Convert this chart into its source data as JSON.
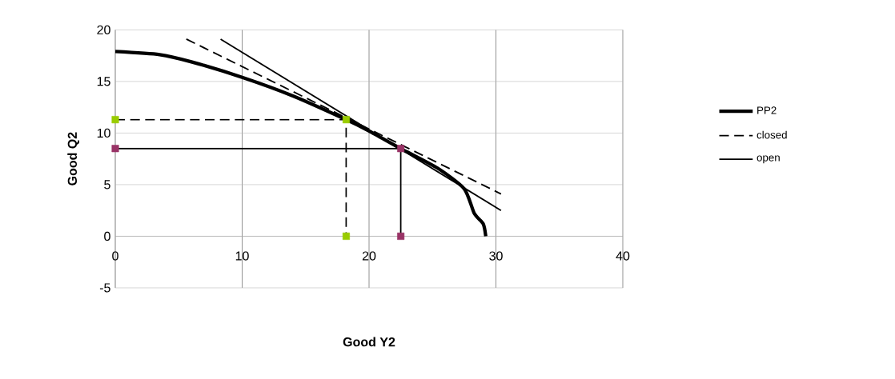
{
  "chart_data": {
    "type": "line",
    "xlabel": "Good Y2",
    "ylabel": "Good Q2",
    "xlim": [
      0,
      40
    ],
    "ylim": [
      -5,
      20
    ],
    "xticks": [
      0,
      10,
      20,
      30,
      40
    ],
    "yticks": [
      -5,
      0,
      5,
      10,
      15,
      20
    ],
    "grid": true,
    "legend": "right",
    "marker": "none",
    "series": [
      {
        "name": "PP2",
        "color": "#000000",
        "x": [
          0,
          3.5,
          6,
          10,
          14,
          18.2,
          20,
          22.5,
          25.4,
          27.5,
          28.3,
          29.0,
          29.2
        ],
        "values": [
          17.9,
          17.6,
          16.9,
          15.4,
          13.6,
          11.3,
          10.2,
          8.5,
          6.6,
          4.6,
          2.2,
          1.2,
          0
        ]
      },
      {
        "name": "closed",
        "color": "#000000",
        "line_style": "dashed",
        "x": [
          5.6,
          30.4
        ],
        "values": [
          19.1,
          4.1
        ]
      },
      {
        "name": "open",
        "color": "#000000",
        "line_style": "solid",
        "x": [
          8.3,
          30.4
        ],
        "values": [
          19.1,
          2.5
        ]
      },
      {
        "color": "#000000",
        "line_style": "dashed",
        "x": [
          0,
          18.2,
          18.2
        ],
        "values": [
          11.3,
          11.3,
          0
        ]
      },
      {
        "color": "#000000",
        "line_style": "solid",
        "x": [
          0,
          22.5,
          22.5
        ],
        "values": [
          8.5,
          8.5,
          0
        ]
      },
      {
        "type": "scatter",
        "marker": "square",
        "color": "#99cc00",
        "x": [
          0,
          18.2,
          18.2
        ],
        "values": [
          11.3,
          11.3,
          0
        ]
      },
      {
        "type": "scatter",
        "marker": "square",
        "color": "#993366",
        "x": [
          0,
          22.5,
          22.5
        ],
        "values": [
          8.5,
          8.5,
          0
        ]
      }
    ]
  }
}
